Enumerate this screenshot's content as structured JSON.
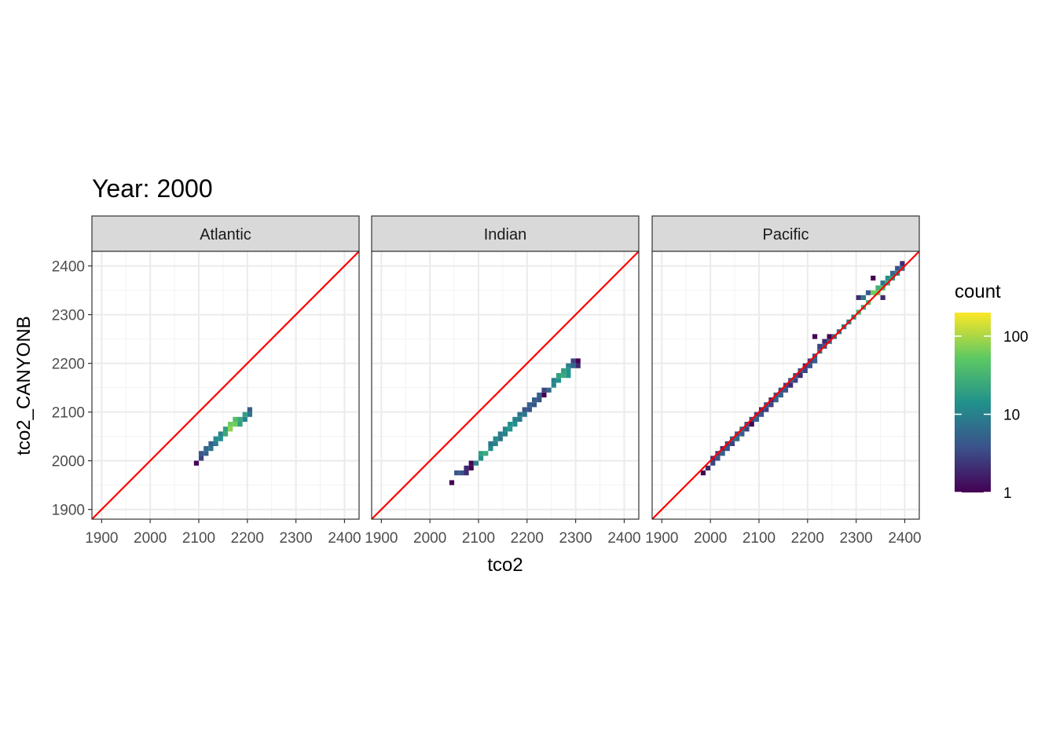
{
  "chart_data": {
    "type": "heatmap",
    "title": "Year: 2000",
    "xlabel": "tco2",
    "ylabel": "tco2_CANYONB",
    "xlim": [
      1880,
      2430
    ],
    "ylim": [
      1880,
      2430
    ],
    "x_ticks": [
      1900,
      2000,
      2100,
      2200,
      2300,
      2400
    ],
    "y_ticks": [
      1900,
      2000,
      2100,
      2200,
      2300,
      2400
    ],
    "x_tick_labels": [
      "1900",
      "2000",
      "2100",
      "2200",
      "2300",
      "2400"
    ],
    "y_tick_labels": [
      "1900",
      "2000",
      "2100",
      "2200",
      "2300",
      "2400"
    ],
    "bin_width": 10,
    "reference_line": {
      "slope": 1,
      "intercept": 0,
      "color": "#ff0000"
    },
    "grid": true,
    "legend": {
      "title": "count",
      "scale": "log10",
      "range": [
        1,
        200
      ],
      "breaks": [
        1,
        10,
        100
      ],
      "break_labels": [
        "1",
        "10",
        "100"
      ],
      "placement": "right",
      "colors": [
        "#440154",
        "#3b528b",
        "#21918c",
        "#5ec962",
        "#fde725"
      ]
    },
    "facets": [
      {
        "label": "Atlantic",
        "cells": [
          [
            2095,
            1995,
            1
          ],
          [
            2105,
            2005,
            3
          ],
          [
            2105,
            2015,
            4
          ],
          [
            2115,
            2015,
            5
          ],
          [
            2115,
            2025,
            6
          ],
          [
            2125,
            2025,
            8
          ],
          [
            2125,
            2035,
            5
          ],
          [
            2135,
            2035,
            9
          ],
          [
            2135,
            2045,
            12
          ],
          [
            2145,
            2045,
            14
          ],
          [
            2145,
            2055,
            10
          ],
          [
            2155,
            2055,
            25
          ],
          [
            2155,
            2065,
            20
          ],
          [
            2165,
            2065,
            80
          ],
          [
            2165,
            2075,
            60
          ],
          [
            2175,
            2075,
            60
          ],
          [
            2175,
            2085,
            40
          ],
          [
            2185,
            2075,
            20
          ],
          [
            2185,
            2085,
            25
          ],
          [
            2195,
            2085,
            10
          ],
          [
            2195,
            2095,
            20
          ],
          [
            2205,
            2095,
            8
          ],
          [
            2205,
            2105,
            5
          ]
        ]
      },
      {
        "label": "Indian",
        "cells": [
          [
            2045,
            1955,
            1
          ],
          [
            2055,
            1975,
            4
          ],
          [
            2065,
            1975,
            4
          ],
          [
            2075,
            1975,
            2
          ],
          [
            2075,
            1985,
            2
          ],
          [
            2085,
            1985,
            1
          ],
          [
            2085,
            1995,
            1
          ],
          [
            2095,
            1995,
            10
          ],
          [
            2105,
            2005,
            15
          ],
          [
            2105,
            2015,
            20
          ],
          [
            2115,
            2015,
            25
          ],
          [
            2125,
            2025,
            12
          ],
          [
            2125,
            2035,
            8
          ],
          [
            2135,
            2035,
            10
          ],
          [
            2135,
            2045,
            12
          ],
          [
            2145,
            2045,
            8
          ],
          [
            2145,
            2055,
            9
          ],
          [
            2155,
            2055,
            10
          ],
          [
            2155,
            2065,
            12
          ],
          [
            2165,
            2065,
            15
          ],
          [
            2165,
            2075,
            14
          ],
          [
            2175,
            2075,
            14
          ],
          [
            2175,
            2085,
            10
          ],
          [
            2185,
            2085,
            9
          ],
          [
            2185,
            2095,
            8
          ],
          [
            2195,
            2095,
            8
          ],
          [
            2195,
            2105,
            4
          ],
          [
            2205,
            2105,
            4
          ],
          [
            2205,
            2115,
            5
          ],
          [
            2215,
            2115,
            4
          ],
          [
            2215,
            2125,
            5
          ],
          [
            2225,
            2125,
            4
          ],
          [
            2225,
            2135,
            5
          ],
          [
            2235,
            2135,
            1
          ],
          [
            2235,
            2145,
            3
          ],
          [
            2245,
            2145,
            6
          ],
          [
            2255,
            2155,
            12
          ],
          [
            2255,
            2165,
            10
          ],
          [
            2265,
            2165,
            15
          ],
          [
            2265,
            2175,
            20
          ],
          [
            2275,
            2175,
            25
          ],
          [
            2275,
            2185,
            20
          ],
          [
            2285,
            2175,
            15
          ],
          [
            2285,
            2185,
            15
          ],
          [
            2285,
            2195,
            10
          ],
          [
            2295,
            2195,
            6
          ],
          [
            2295,
            2205,
            3
          ],
          [
            2305,
            2195,
            2
          ],
          [
            2305,
            2205,
            1
          ]
        ]
      },
      {
        "label": "Pacific",
        "cells": [
          [
            1985,
            1975,
            1
          ],
          [
            1995,
            1985,
            2
          ],
          [
            2005,
            1995,
            3
          ],
          [
            2005,
            2005,
            2
          ],
          [
            2015,
            2005,
            4
          ],
          [
            2015,
            2015,
            3
          ],
          [
            2025,
            2015,
            5
          ],
          [
            2025,
            2025,
            2
          ],
          [
            2035,
            2025,
            4
          ],
          [
            2035,
            2035,
            3
          ],
          [
            2045,
            2035,
            3
          ],
          [
            2045,
            2045,
            5
          ],
          [
            2055,
            2045,
            6
          ],
          [
            2055,
            2055,
            4
          ],
          [
            2065,
            2055,
            5
          ],
          [
            2065,
            2065,
            6
          ],
          [
            2075,
            2065,
            3
          ],
          [
            2075,
            2075,
            4
          ],
          [
            2085,
            2075,
            1
          ],
          [
            2085,
            2085,
            3
          ],
          [
            2095,
            2085,
            5
          ],
          [
            2095,
            2095,
            3
          ],
          [
            2105,
            2095,
            4
          ],
          [
            2105,
            2105,
            2
          ],
          [
            2115,
            2105,
            3
          ],
          [
            2115,
            2115,
            4
          ],
          [
            2125,
            2115,
            3
          ],
          [
            2125,
            2125,
            2
          ],
          [
            2135,
            2125,
            5
          ],
          [
            2135,
            2135,
            4
          ],
          [
            2145,
            2135,
            5
          ],
          [
            2145,
            2145,
            3
          ],
          [
            2155,
            2145,
            4
          ],
          [
            2155,
            2155,
            3
          ],
          [
            2165,
            2155,
            2
          ],
          [
            2165,
            2165,
            5
          ],
          [
            2175,
            2165,
            3
          ],
          [
            2175,
            2175,
            4
          ],
          [
            2185,
            2175,
            2
          ],
          [
            2185,
            2185,
            4
          ],
          [
            2195,
            2185,
            3
          ],
          [
            2195,
            2195,
            2
          ],
          [
            2205,
            2195,
            4
          ],
          [
            2205,
            2205,
            3
          ],
          [
            2215,
            2205,
            5
          ],
          [
            2215,
            2215,
            4
          ],
          [
            2215,
            2255,
            1
          ],
          [
            2225,
            2225,
            6
          ],
          [
            2225,
            2235,
            3
          ],
          [
            2235,
            2235,
            4
          ],
          [
            2235,
            2245,
            2
          ],
          [
            2245,
            2245,
            5
          ],
          [
            2245,
            2255,
            1
          ],
          [
            2255,
            2255,
            6
          ],
          [
            2265,
            2265,
            7
          ],
          [
            2275,
            2275,
            8
          ],
          [
            2285,
            2285,
            10
          ],
          [
            2295,
            2295,
            12
          ],
          [
            2305,
            2305,
            30
          ],
          [
            2305,
            2335,
            2
          ],
          [
            2315,
            2315,
            25
          ],
          [
            2315,
            2335,
            8
          ],
          [
            2325,
            2325,
            40
          ],
          [
            2325,
            2345,
            4
          ],
          [
            2335,
            2345,
            60
          ],
          [
            2345,
            2345,
            60
          ],
          [
            2345,
            2355,
            30
          ],
          [
            2355,
            2355,
            40
          ],
          [
            2355,
            2365,
            8
          ],
          [
            2365,
            2365,
            25
          ],
          [
            2365,
            2375,
            15
          ],
          [
            2375,
            2375,
            20
          ],
          [
            2375,
            2385,
            6
          ],
          [
            2385,
            2385,
            12
          ],
          [
            2385,
            2395,
            4
          ],
          [
            2395,
            2395,
            6
          ],
          [
            2395,
            2405,
            2
          ],
          [
            2355,
            2335,
            2
          ],
          [
            2335,
            2375,
            1
          ]
        ]
      }
    ]
  }
}
